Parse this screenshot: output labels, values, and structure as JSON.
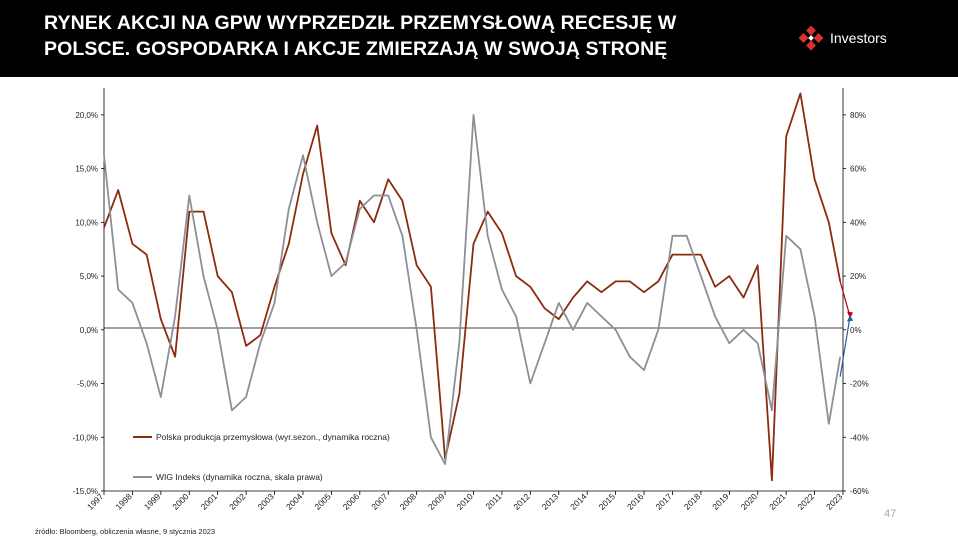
{
  "header": {
    "title": "RYNEK AKCJI NA GPW WYPRZEDZIŁ PRZEMYSŁOWĄ RECESJĘ W POLSCE. GOSPODARKA I AKCJE ZMIERZAJĄ W SWOJĄ STRONĘ",
    "logo_text": "Investors",
    "logo_icon": "investors-logo-icon",
    "background": "#000000"
  },
  "footer": {
    "source": "źródło: Bloomberg, obliczenia własne, 9 stycznia 2023",
    "page_number": "47"
  },
  "chart_data": {
    "type": "line",
    "x": [
      "1997",
      "1997.5",
      "1998",
      "1998.5",
      "1999",
      "1999.5",
      "2000",
      "2000.5",
      "2001",
      "2001.5",
      "2002",
      "2002.5",
      "2003",
      "2003.5",
      "2004",
      "2004.5",
      "2005",
      "2005.5",
      "2006",
      "2006.5",
      "2007",
      "2007.5",
      "2008",
      "2008.5",
      "2009",
      "2009.5",
      "2010",
      "2010.5",
      "2011",
      "2011.5",
      "2012",
      "2012.5",
      "2013",
      "2013.5",
      "2014",
      "2014.5",
      "2015",
      "2015.5",
      "2016",
      "2016.5",
      "2017",
      "2017.5",
      "2018",
      "2018.5",
      "2019",
      "2019.5",
      "2020",
      "2020.5",
      "2021",
      "2021.5",
      "2022",
      "2022.5",
      "2022.9"
    ],
    "x_tick_labels": [
      "1997",
      "1998",
      "1999",
      "2000",
      "2001",
      "2002",
      "2003",
      "2004",
      "2005",
      "2006",
      "2007",
      "2008",
      "2009",
      "2010",
      "2011",
      "2012",
      "2013",
      "2014",
      "2015",
      "2016",
      "2017",
      "2018",
      "2019",
      "2020",
      "2021",
      "2022",
      "2023"
    ],
    "series": [
      {
        "name": "Polska produkcja przemysłowa (wyr.sezon., dynamika roczna)",
        "axis": "left",
        "color": "#8b2c0e",
        "values": [
          9.5,
          13,
          8,
          7,
          1,
          -2.5,
          11,
          11,
          5,
          3.5,
          -1.5,
          -0.5,
          4,
          8,
          14.5,
          19,
          9,
          6,
          12,
          10,
          14,
          12,
          6,
          4,
          -12,
          -6,
          8,
          11,
          9,
          5,
          4,
          2,
          1,
          3,
          4.5,
          3.5,
          4.5,
          4.5,
          3.5,
          4.5,
          7,
          7,
          7,
          4,
          5,
          3,
          6,
          -14,
          18,
          22,
          14,
          10,
          4.5
        ]
      },
      {
        "name": "WIG Indeks (dynamika roczna, skala prawa)",
        "axis": "right",
        "color": "#8c9096",
        "values": [
          65,
          15,
          10,
          -5,
          -25,
          5,
          50,
          20,
          0,
          -30,
          -25,
          -5,
          10,
          45,
          65,
          40,
          20,
          25,
          45,
          50,
          50,
          35,
          0,
          -40,
          -50,
          -5,
          80,
          35,
          15,
          5,
          -20,
          -5,
          10,
          0,
          10,
          5,
          0,
          -10,
          -15,
          0,
          35,
          35,
          20,
          5,
          -5,
          0,
          -5,
          -30,
          35,
          30,
          5,
          -35,
          -10
        ]
      }
    ],
    "left_axis": {
      "ylim": [
        -15,
        22.5
      ],
      "ticks": [
        "-15,0%",
        "-10,0%",
        "-5,0%",
        "0,0%",
        "5,0%",
        "10,0%",
        "15,0%",
        "20,0%"
      ]
    },
    "right_axis": {
      "ylim": [
        -60,
        90
      ],
      "ticks": [
        "-60%",
        "-40%",
        "-20%",
        "0%",
        "20%",
        "40%",
        "60%",
        "80%"
      ]
    },
    "legend_placement": "lower-left",
    "arrows": [
      {
        "series": "Polska produkcja przemysłowa (wyr.sezon., dynamika roczna)",
        "direction": "down",
        "color": "#c00000"
      },
      {
        "series": "WIG Indeks (dynamika roczna, skala prawa)",
        "direction": "up",
        "color": "#2e5c9a"
      }
    ],
    "grid": false
  }
}
